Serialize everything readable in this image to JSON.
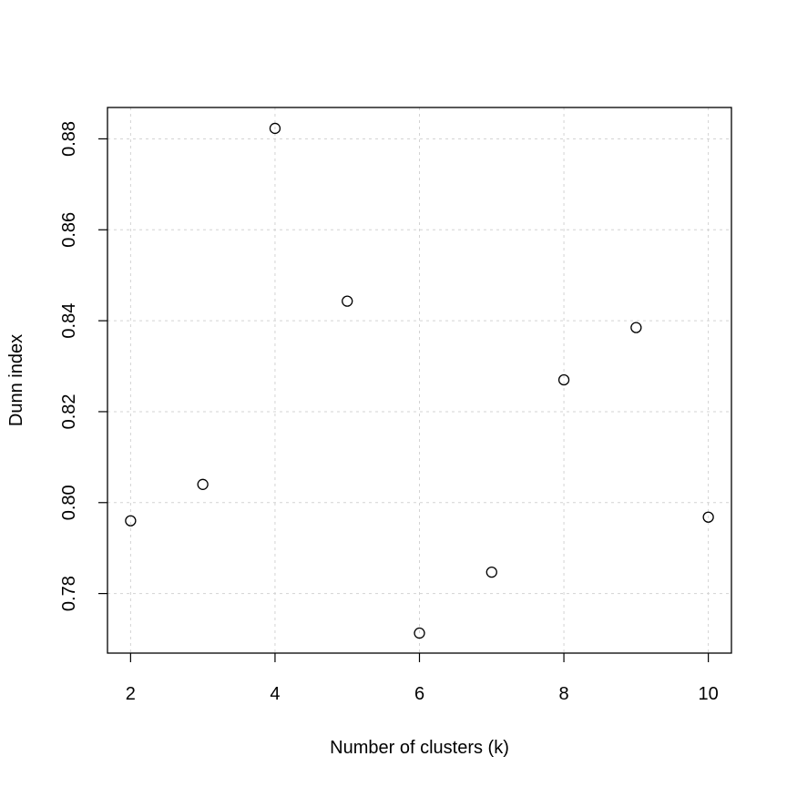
{
  "chart_data": {
    "type": "scatter",
    "title": "",
    "xlabel": "Number of clusters (k)",
    "ylabel": "Dunn index",
    "xlim": [
      1.68,
      10.32
    ],
    "ylim": [
      0.7669,
      0.8869
    ],
    "x_ticks": [
      2,
      4,
      6,
      8,
      10
    ],
    "x_tick_labels": [
      "2",
      "4",
      "6",
      "8",
      "10"
    ],
    "y_ticks": [
      0.78,
      0.8,
      0.82,
      0.84,
      0.86,
      0.88
    ],
    "y_tick_labels": [
      "0.78",
      "0.80",
      "0.82",
      "0.84",
      "0.86",
      "0.88"
    ],
    "grid": true,
    "x": [
      2,
      3,
      4,
      5,
      6,
      7,
      8,
      9,
      10
    ],
    "y": [
      0.796,
      0.804,
      0.8823,
      0.8443,
      0.7713,
      0.7847,
      0.827,
      0.8385,
      0.7968
    ]
  }
}
